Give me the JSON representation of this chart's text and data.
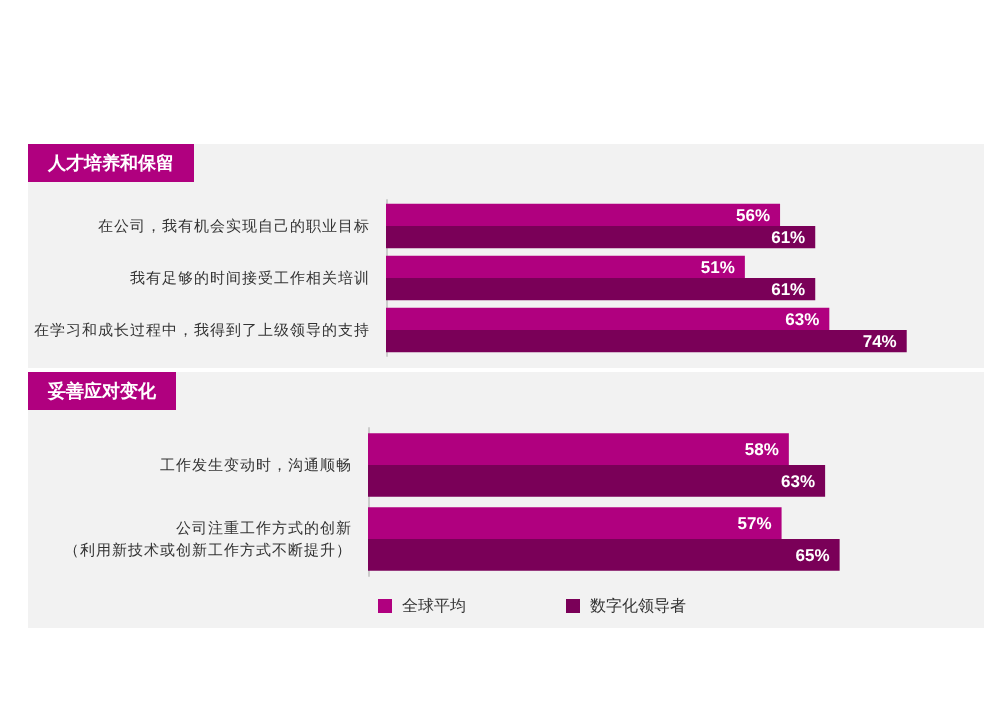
{
  "chart_data": [
    {
      "type": "bar",
      "orientation": "horizontal",
      "title": "人才培养和保留",
      "categories": [
        "在公司，我有机会实现自己的职业目标",
        "我有足够的时间接受工作相关培训",
        "在学习和成长过程中，我得到了上级领导的支持"
      ],
      "series": [
        {
          "color": "#b0007f",
          "values": [
            56,
            51,
            63
          ],
          "value_labels": [
            "56%",
            "51%",
            "63%"
          ]
        },
        {
          "color": "#7a0058",
          "values": [
            61,
            61,
            74
          ],
          "value_labels": [
            "61%",
            "61%",
            "74%"
          ]
        }
      ],
      "legend": false,
      "grid": false
    },
    {
      "type": "bar",
      "orientation": "horizontal",
      "title": "妥善应对变化",
      "categories": [
        "工作发生变动时，沟通顺畅",
        "公司注重工作方式的创新（利用新技术或创新工作方式不断提升）"
      ],
      "series": [
        {
          "name": "全球平均",
          "color": "#b0007f",
          "values": [
            58,
            57
          ],
          "value_labels": [
            "58%",
            "57%"
          ]
        },
        {
          "name": "数字化领导者",
          "color": "#7a0058",
          "values": [
            63,
            65
          ],
          "value_labels": [
            "63%",
            "65%"
          ]
        }
      ],
      "legend": "bottom left",
      "grid": false
    }
  ]
}
